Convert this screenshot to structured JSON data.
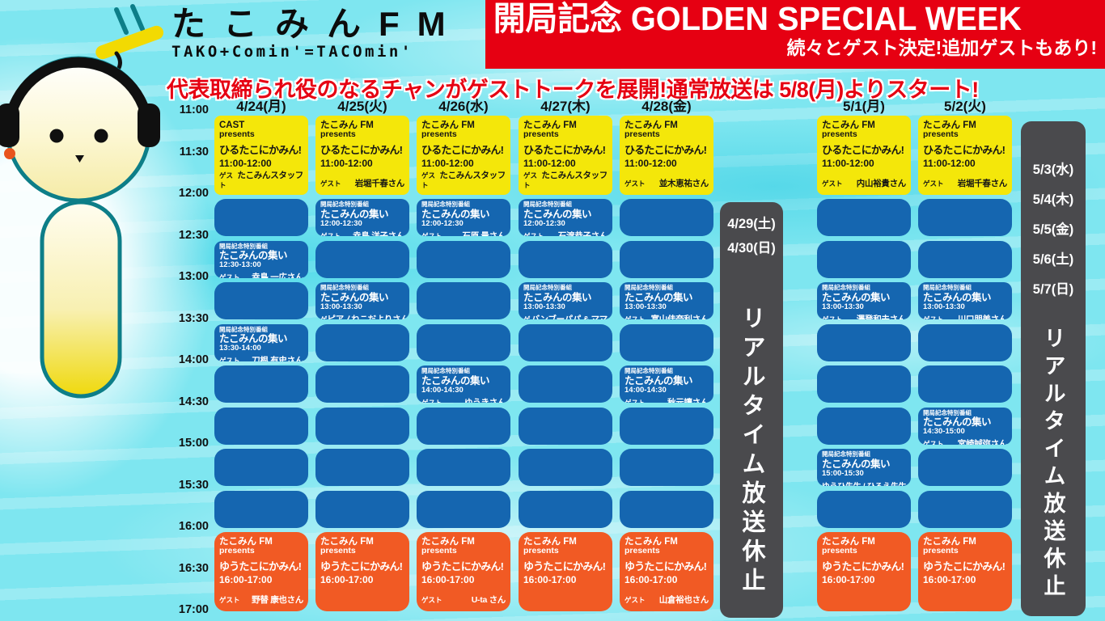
{
  "logo": {
    "title": "たこみんFM",
    "subtitle": "TAKO+Comin'=TACOmin'"
  },
  "banner": {
    "title": "開局記念 GOLDEN SPECIAL WEEK",
    "subtitle": "続々とゲスト決定!追加ゲストもあり!"
  },
  "notice": "代表取締られ役のなるチャンがゲストトークを展開!通常放送は 5/8(月)よりスタート!",
  "icons": {
    "mascot": "octopus-mascot-with-headphones"
  },
  "colors": {
    "banner_red": "#e60012",
    "noon_yellow": "#f4e70a",
    "slot_blue": "#1566b0",
    "evening_orange": "#f15a24",
    "closed_gray": "#4a4a4d",
    "background_cyan": "#7ee6f0"
  },
  "times": [
    "11:00",
    "11:30",
    "12:00",
    "12:30",
    "13:00",
    "13:30",
    "14:00",
    "14:30",
    "15:00",
    "15:30",
    "16:00",
    "16:30",
    "17:00"
  ],
  "special_header": "開局記念特別番組",
  "columns": [
    {
      "date": "4/24(月)",
      "noon": {
        "brand": "CAST",
        "presents": "presents",
        "title": "ひるたこにかみん!",
        "time": "11:00-12:00",
        "guest_label": "ゲスト",
        "guest": "たこみんスタッフ"
      },
      "slots": [
        null,
        {
          "header": "開局記念特別番組",
          "title": "たこみんの集い",
          "time": "12:30-13:00",
          "guest_label": "ゲスト",
          "guest": "幸島 一広さん"
        },
        null,
        {
          "header": "開局記念特別番組",
          "title": "たこみんの集い",
          "time": "13:30-14:00",
          "guest_label": "ゲスト",
          "guest": "刀根 有史さん"
        },
        null,
        null,
        null,
        null
      ],
      "evening": {
        "brand": "たこみん FM",
        "presents": "presents",
        "title": "ゆうたこにかみん!",
        "time": "16:00-17:00",
        "guest_label": "ゲスト",
        "guest": "野替 康也さん"
      }
    },
    {
      "date": "4/25(火)",
      "noon": {
        "brand": "たこみん FM",
        "presents": "presents",
        "title": "ひるたこにかみん!",
        "time": "11:00-12:00",
        "guest_label": "ゲスト",
        "guest": "岩堀千春さん"
      },
      "slots": [
        {
          "header": "開局記念特別番組",
          "title": "たこみんの集い",
          "time": "12:00-12:30",
          "guest_label": "ゲスト",
          "guest": "幸島 洋子さん"
        },
        null,
        {
          "header": "開局記念特別番組",
          "title": "たこみんの集い",
          "time": "13:00-13:30",
          "guest_label": "ゲスト",
          "guest": "ピアノねこだよりさん"
        },
        null,
        null,
        null,
        null,
        null
      ],
      "evening": {
        "brand": "たこみん FM",
        "presents": "presents",
        "title": "ゆうたこにかみん!",
        "time": "16:00-17:00",
        "guest_label": "",
        "guest": ""
      }
    },
    {
      "date": "4/26(水)",
      "noon": {
        "brand": "たこみん FM",
        "presents": "presents",
        "title": "ひるたこにかみん!",
        "time": "11:00-12:00",
        "guest_label": "ゲスト",
        "guest": "たこみんスタッフ"
      },
      "slots": [
        {
          "header": "開局記念特別番組",
          "title": "たこみんの集い",
          "time": "12:00-12:30",
          "guest_label": "ゲスト",
          "guest": "石原 量さん"
        },
        null,
        null,
        null,
        {
          "header": "開局記念特別番組",
          "title": "たこみんの集い",
          "time": "14:00-14:30",
          "guest_label": "ゲスト",
          "guest": "ゆうきさん"
        },
        null,
        null,
        null
      ],
      "evening": {
        "brand": "たこみん FM",
        "presents": "presents",
        "title": "ゆうたこにかみん!",
        "time": "16:00-17:00",
        "guest_label": "ゲスト",
        "guest": "U-ta さん"
      }
    },
    {
      "date": "4/27(木)",
      "noon": {
        "brand": "たこみん FM",
        "presents": "presents",
        "title": "ひるたこにかみん!",
        "time": "11:00-12:00",
        "guest_label": "ゲスト",
        "guest": "たこみんスタッフ"
      },
      "slots": [
        {
          "header": "開局記念特別番組",
          "title": "たこみんの集い",
          "time": "12:00-12:30",
          "guest_label": "ゲスト",
          "guest": "石渡恭子さん"
        },
        null,
        {
          "header": "開局記念特別番組",
          "title": "たこみんの集い",
          "time": "13:00-13:30",
          "guest_label": "ゲスト",
          "guest": "バンブーパパ & ママ"
        },
        null,
        null,
        null,
        null,
        null
      ],
      "evening": {
        "brand": "たこみん FM",
        "presents": "presents",
        "title": "ゆうたこにかみん!",
        "time": "16:00-17:00",
        "guest_label": "",
        "guest": ""
      }
    },
    {
      "date": "4/28(金)",
      "noon": {
        "brand": "たこみん FM",
        "presents": "presents",
        "title": "ひるたこにかみん!",
        "time": "11:00-12:00",
        "guest_label": "ゲスト",
        "guest": "並木恵祐さん"
      },
      "slots": [
        null,
        null,
        {
          "header": "開局記念特別番組",
          "title": "たこみんの集い",
          "time": "13:00-13:30",
          "guest_label": "ゲスト",
          "guest": "富山佳奈利さん"
        },
        null,
        {
          "header": "開局記念特別番組",
          "title": "たこみんの集い",
          "time": "14:00-14:30",
          "guest_label": "ゲスト",
          "guest": "秋元讓さん"
        },
        null,
        null,
        null
      ],
      "evening": {
        "brand": "たこみん FM",
        "presents": "presents",
        "title": "ゆうたこにかみん!",
        "time": "16:00-17:00",
        "guest_label": "ゲスト",
        "guest": "山倉裕也さん"
      }
    },
    {
      "date": "5/1(月)",
      "noon": {
        "brand": "たこみん FM",
        "presents": "presents",
        "title": "ひるたこにかみん!",
        "time": "11:00-12:00",
        "guest_label": "ゲスト",
        "guest": "内山裕貴さん"
      },
      "slots": [
        null,
        null,
        {
          "header": "開局記念特別番組",
          "title": "たこみんの集い",
          "time": "13:00-13:30",
          "guest_label": "ゲスト",
          "guest": "澤登和夫さん"
        },
        null,
        null,
        null,
        {
          "header": "開局記念特別番組",
          "title": "たこみんの集い",
          "time": "15:00-15:30",
          "guest_label": "",
          "guest": "ゆうひ先生 / ひろえ先生"
        },
        null
      ],
      "evening": {
        "brand": "たこみん FM",
        "presents": "presents",
        "title": "ゆうたこにかみん!",
        "time": "16:00-17:00",
        "guest_label": "",
        "guest": ""
      }
    },
    {
      "date": "5/2(火)",
      "noon": {
        "brand": "たこみん FM",
        "presents": "presents",
        "title": "ひるたこにかみん!",
        "time": "11:00-12:00",
        "guest_label": "ゲスト",
        "guest": "岩堀千春さん"
      },
      "slots": [
        null,
        null,
        {
          "header": "開局記念特別番組",
          "title": "たこみんの集い",
          "time": "13:00-13:30",
          "guest_label": "ゲスト",
          "guest": "川口朋美さん"
        },
        null,
        null,
        {
          "header": "開局記念特別番組",
          "title": "たこみんの集い",
          "time": "14:30-15:00",
          "guest_label": "ゲスト",
          "guest": "宮崎誠弥さん"
        },
        null,
        null
      ],
      "evening": {
        "brand": "たこみん FM",
        "presents": "presents",
        "title": "ゆうたこにかみん!",
        "time": "16:00-17:00",
        "guest_label": "",
        "guest": ""
      }
    }
  ],
  "closed_columns": [
    {
      "dates": [
        "4/29(土)",
        "4/30(日)"
      ],
      "label": "リアルタイム放送休止"
    },
    {
      "dates": [
        "5/3(水)",
        "5/4(木)",
        "5/5(金)",
        "5/6(土)",
        "5/7(日)"
      ],
      "label": "リアルタイム放送休止"
    }
  ]
}
